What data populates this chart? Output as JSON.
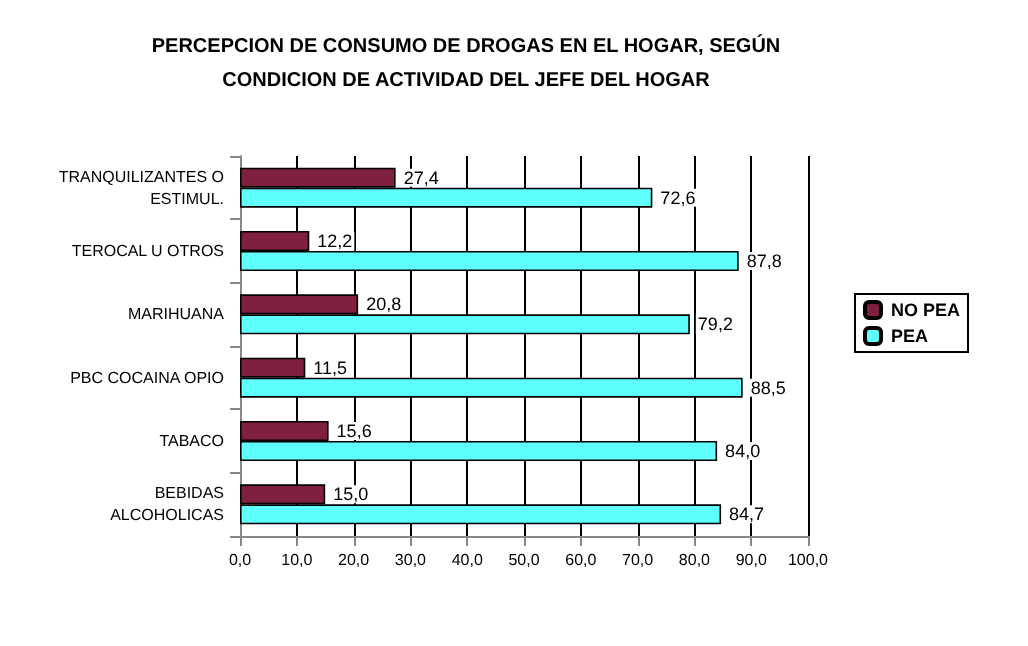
{
  "chart_data": {
    "type": "bar",
    "orientation": "horizontal",
    "title": "PERCEPCION DE CONSUMO DE DROGAS EN EL HOGAR, SEGÚN\nCONDICION DE ACTIVIDAD DEL JEFE DEL HOGAR",
    "categories": [
      "TRANQUILIZANTES O\nESTIMUL.",
      "TEROCAL U OTROS",
      "MARIHUANA",
      "PBC COCAINA OPIO",
      "TABACO",
      "BEBIDAS\nALCOHOLICAS"
    ],
    "series": [
      {
        "name": "NO PEA",
        "color": "#802040",
        "values": [
          27.4,
          12.2,
          20.8,
          11.5,
          15.6,
          15.0
        ],
        "value_labels": [
          "27,4",
          "12,2",
          "20,8",
          "11,5",
          "15,6",
          "15,0"
        ]
      },
      {
        "name": "PEA",
        "color": "#60ffff",
        "values": [
          72.6,
          87.8,
          79.2,
          88.5,
          84.0,
          84.7
        ],
        "value_labels": [
          "72,6",
          "87,8",
          "79,2",
          "88,5",
          "84,0",
          "84,7"
        ]
      }
    ],
    "xlim": [
      0,
      100
    ],
    "xticks": [
      {
        "value": 0,
        "label": "0,0"
      },
      {
        "value": 10,
        "label": "10,0"
      },
      {
        "value": 20,
        "label": "20,0"
      },
      {
        "value": 30,
        "label": "30,0"
      },
      {
        "value": 40,
        "label": "40,0"
      },
      {
        "value": 50,
        "label": "50,0"
      },
      {
        "value": 60,
        "label": "60,0"
      },
      {
        "value": 70,
        "label": "70,0"
      },
      {
        "value": 80,
        "label": "80,0"
      },
      {
        "value": 90,
        "label": "90,0"
      },
      {
        "value": 100,
        "label": "100,0"
      }
    ],
    "grid": "x",
    "legend": "right"
  }
}
